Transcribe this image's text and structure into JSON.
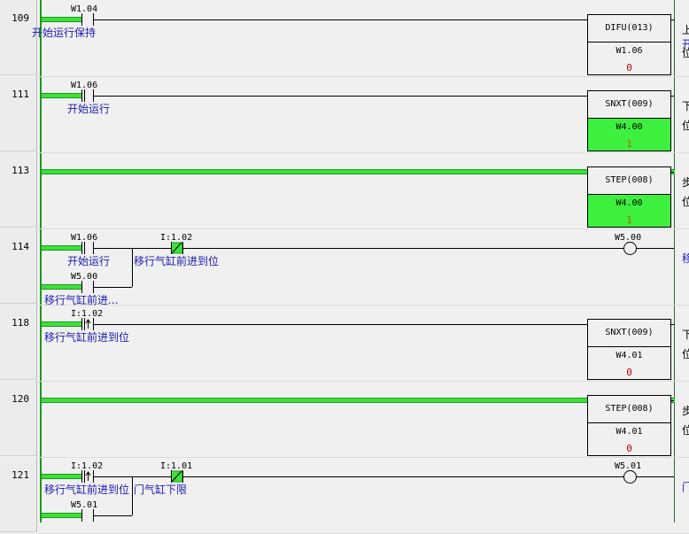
{
  "colors": {
    "power_flow": "#3ee03e",
    "comment": "#1a1ab0",
    "value": "#c00000"
  },
  "rungs": [
    {
      "number": "109",
      "contacts": [
        {
          "address": "W1.04",
          "comment": "开始运行保持",
          "type": "no"
        }
      ],
      "instruction": {
        "name": "DIFU(013)",
        "operand": "W1.06",
        "value": "0",
        "active": false
      },
      "right_comment": [
        "上",
        "开",
        "位"
      ]
    },
    {
      "number": "111",
      "contacts": [
        {
          "address": "W1.06",
          "comment": "开始运行",
          "type": "no",
          "on": true
        }
      ],
      "instruction": {
        "name": "SNXT(009)",
        "operand": "W4.00",
        "value": "1",
        "active": true
      },
      "right_comment": [
        "下",
        "位"
      ]
    },
    {
      "number": "113",
      "instruction": {
        "name": "STEP(008)",
        "operand": "W4.00",
        "value": "1",
        "active": true
      },
      "right_comment": [
        "步",
        "位"
      ]
    },
    {
      "number": "114",
      "contacts": [
        {
          "address": "W1.06",
          "comment": "开始运行",
          "type": "no",
          "on": true
        },
        {
          "address": "I:1.02",
          "comment": "移行气缸前进到位",
          "type": "nc"
        },
        {
          "address": "W5.00",
          "comment": "移行气缸前进...",
          "type": "no"
        }
      ],
      "coil": {
        "address": "W5.00"
      },
      "right_comment": [
        "移"
      ]
    },
    {
      "number": "118",
      "contacts": [
        {
          "address": "I:1.02",
          "comment": "移行气缸前进到位",
          "type": "up"
        }
      ],
      "instruction": {
        "name": "SNXT(009)",
        "operand": "W4.01",
        "value": "0",
        "active": false
      },
      "right_comment": [
        "下",
        "位"
      ]
    },
    {
      "number": "120",
      "instruction": {
        "name": "STEP(008)",
        "operand": "W4.01",
        "value": "0",
        "active": false
      },
      "right_comment": [
        "步",
        "位"
      ]
    },
    {
      "number": "121",
      "contacts": [
        {
          "address": "I:1.02",
          "comment": "移行气缸前进到位",
          "type": "up"
        },
        {
          "address": "I:1.01",
          "comment": "门气缸下限",
          "type": "nc"
        },
        {
          "address": "W5.01",
          "comment": "",
          "type": "no"
        }
      ],
      "coil": {
        "address": "W5.01"
      },
      "right_comment": [
        "门"
      ]
    }
  ]
}
